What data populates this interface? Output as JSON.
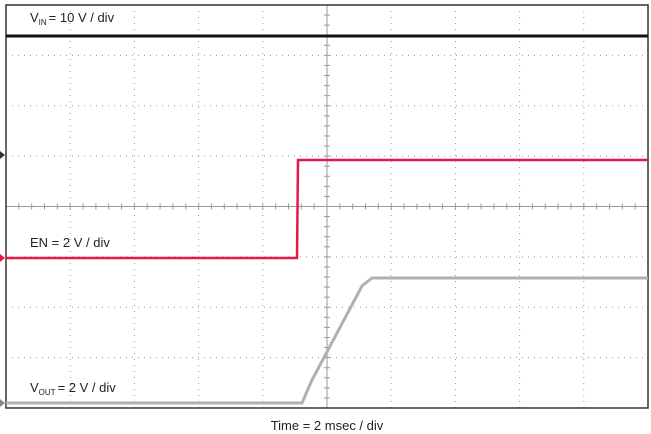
{
  "traces": [
    {
      "symbol": "V",
      "subscript": "IN",
      "text": "= 10 V / div"
    },
    {
      "symbol": "EN = 2 V / div"
    },
    {
      "symbol": "V",
      "subscript": "OUT",
      "text": "= 2 V / div"
    }
  ],
  "x_axis_label": "Time = 2 msec / div"
}
